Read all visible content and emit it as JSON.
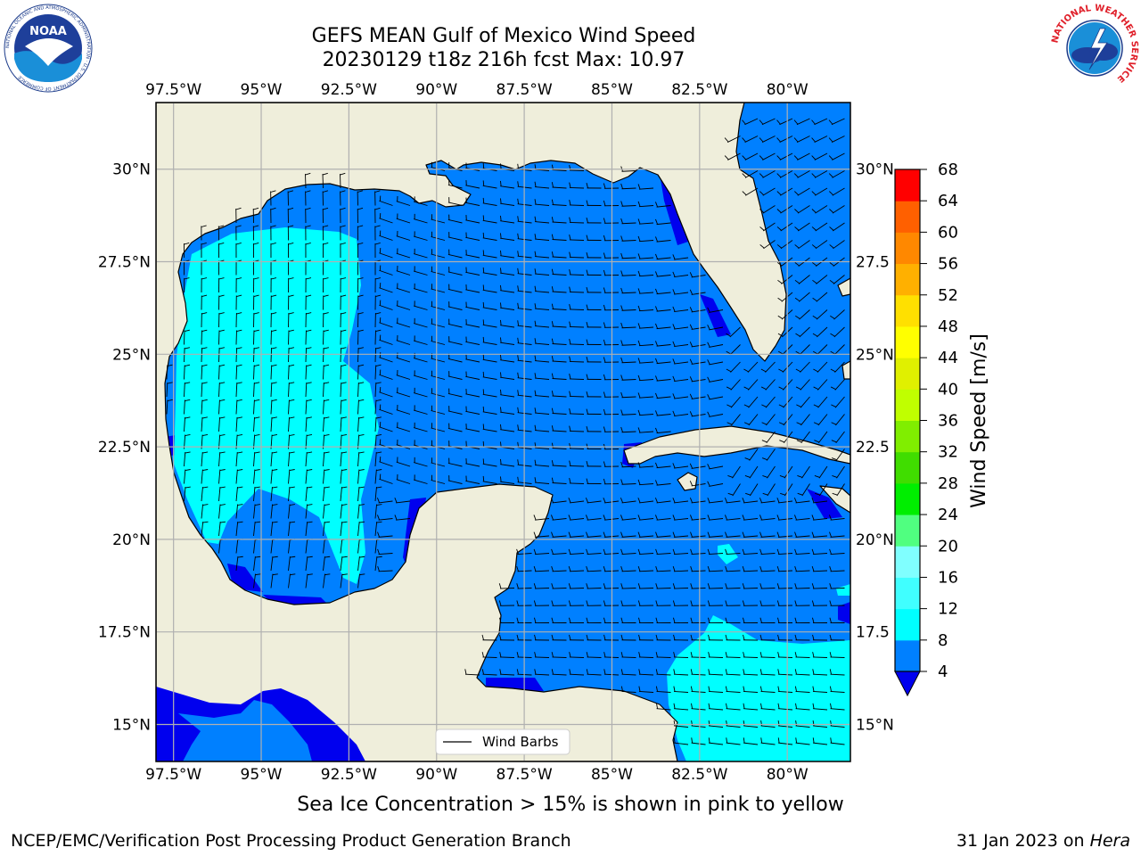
{
  "title_line1": "GEFS MEAN Gulf of Mexico Wind Speed",
  "title_line2": "20230129 t18z 216h fcst   Max: 10.97",
  "map": {
    "lon_ticks": [
      "97.5°W",
      "95°W",
      "92.5°W",
      "90°W",
      "87.5°W",
      "85°W",
      "82.5°W",
      "80°W"
    ],
    "lat_ticks_left": [
      "30°N",
      "27.5°N",
      "25°N",
      "22.5°N",
      "20°N",
      "17.5°N",
      "15°N"
    ],
    "lat_ticks_right": [
      "30°N",
      "27.5",
      "25°N",
      "22.5",
      "20°N",
      "17.5",
      "15°N"
    ],
    "lon_values": [
      -97.5,
      -95,
      -92.5,
      -90,
      -87.5,
      -85,
      -82.5,
      -80
    ],
    "lat_values": [
      30,
      27.5,
      25,
      22.5,
      20,
      17.5,
      15
    ],
    "lon_range": [
      -98,
      -78.2
    ],
    "lat_range": [
      14,
      31.8
    ],
    "legend_label": "Wind Barbs",
    "colors": {
      "land": "#efeedb",
      "wind_4_8": "#0080ff",
      "wind_below_4": "#0000ee",
      "wind_8_12": "#00ffff",
      "grid": "#b0b0b0"
    }
  },
  "colorbar": {
    "label": "Wind Speed [m/s]",
    "ticks": [
      "68",
      "64",
      "60",
      "56",
      "52",
      "48",
      "44",
      "40",
      "36",
      "32",
      "28",
      "24",
      "20",
      "16",
      "12",
      "8",
      "4"
    ],
    "colors_bottom_to_top": [
      "#0080ff",
      "#00ffff",
      "#40ffff",
      "#80ffff",
      "#50ff80",
      "#00ee00",
      "#40dd00",
      "#80ee00",
      "#c0ff00",
      "#e0f000",
      "#ffff00",
      "#ffe000",
      "#ffb000",
      "#ff8800",
      "#ff6000",
      "#ff3000",
      "#ff0000"
    ],
    "under_color": "#0000ee"
  },
  "subtitle": "Sea Ice Concentration > 15% is shown in pink to yellow",
  "footer_left": "NCEP/EMC/Verification Post Processing Product Generation Branch",
  "footer_date": "31 Jan 2023 on",
  "footer_host": "Hera",
  "logos": {
    "noaa_text": "NOAA",
    "noaa_ring_text": "NATIONAL OCEANIC AND ATMOSPHERIC ADMINISTRATION · U.S. DEPARTMENT OF COMMERCE",
    "nws_ring_text": "NATIONAL WEATHER SERVICE"
  }
}
